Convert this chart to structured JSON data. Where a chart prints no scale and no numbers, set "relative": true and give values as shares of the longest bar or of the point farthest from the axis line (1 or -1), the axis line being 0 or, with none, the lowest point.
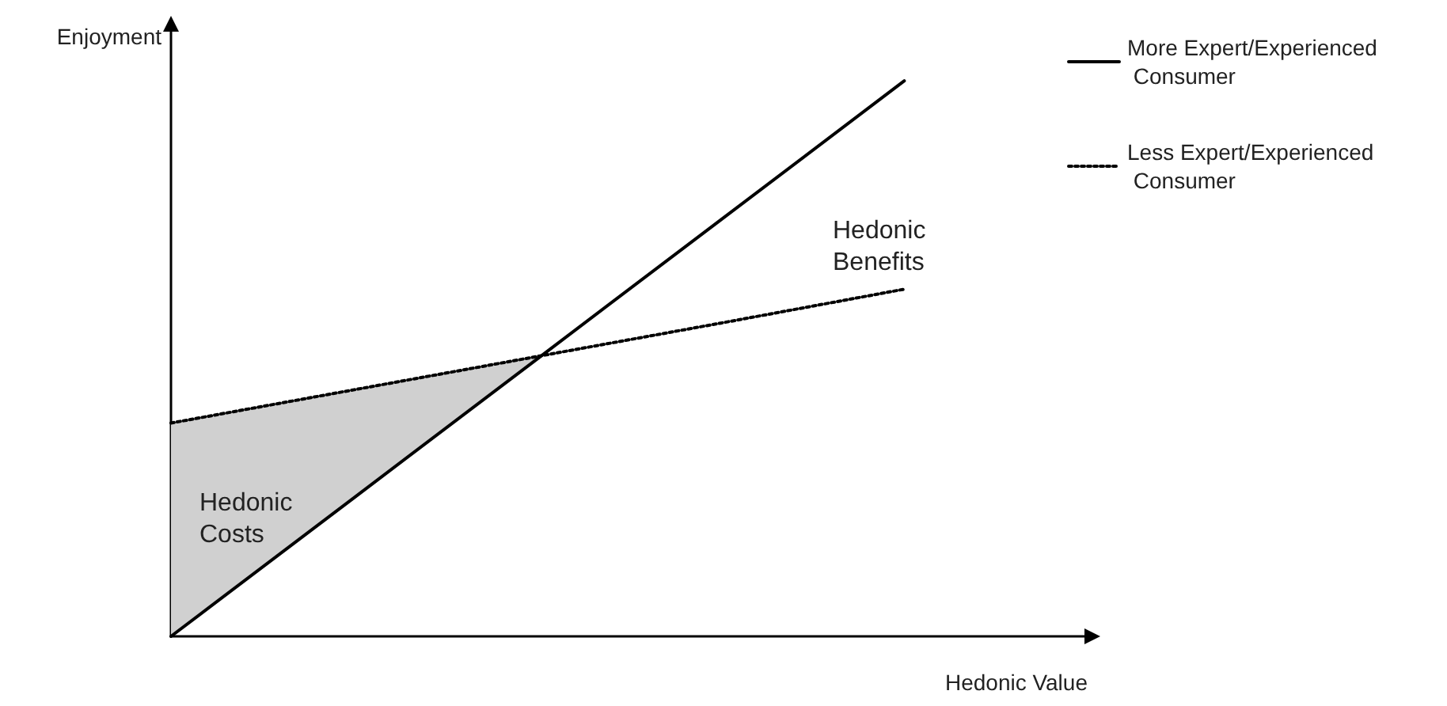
{
  "chart_data": {
    "type": "line",
    "relative": true,
    "xlabel": "Hedonic Value",
    "ylabel": "Enjoyment",
    "categories": [
      null,
      null,
      null,
      null,
      null,
      null
    ],
    "marker": "none",
    "legend": "top right",
    "grid": false,
    "series": [
      {
        "name": "More Expert/Experienced Consumer",
        "color": "#000000",
        "line_style": "solid",
        "values": [
          0,
          0.25,
          0.5,
          0.75,
          1,
          null
        ]
      },
      {
        "name": "Less Expert/Experienced Consumer",
        "color": "#000000",
        "line_style": "dotted",
        "values": [
          0.384,
          0.444,
          0.504,
          0.564,
          0.625,
          null
        ],
        "lower": [
          0,
          0.25,
          0.5,
          null,
          null,
          null
        ],
        "upper": [
          0.384,
          0.444,
          0.504,
          null,
          null,
          null
        ]
      }
    ],
    "annotations": [
      "Hedonic Costs",
      "Hedonic Benefits"
    ]
  }
}
